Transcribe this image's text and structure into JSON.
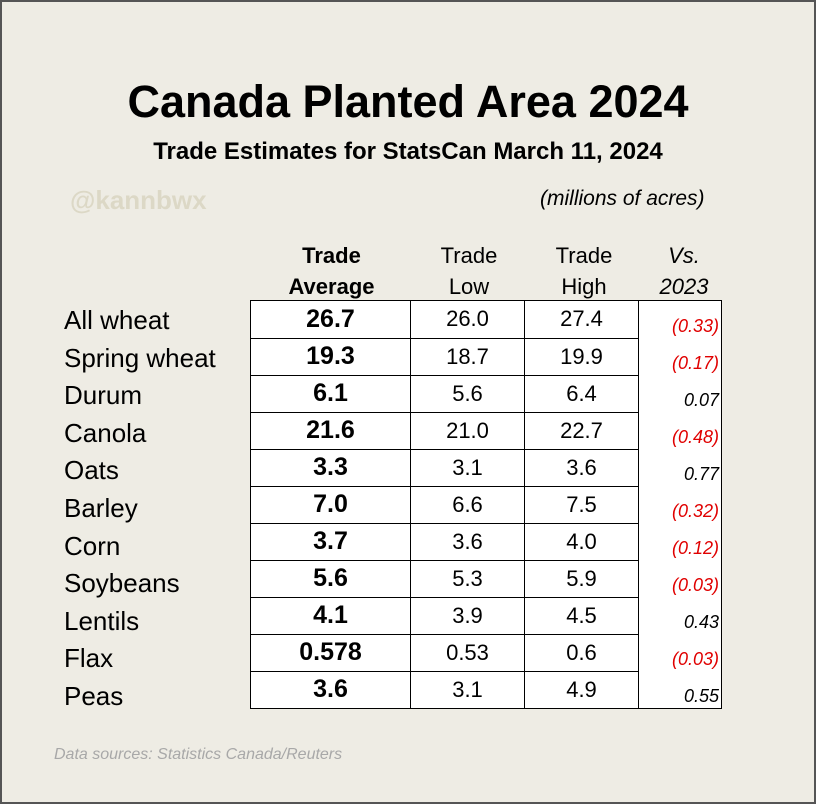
{
  "title": "Canada Planted Area 2024",
  "subtitle": "Trade Estimates for StatsCan March 11, 2024",
  "handle": "@kannbwx",
  "units": "(millions of acres)",
  "columns": [
    {
      "line1": "Trade",
      "line2": "Average"
    },
    {
      "line1": "Trade",
      "line2": "Low"
    },
    {
      "line1": "Trade",
      "line2": "High"
    },
    {
      "line1": "Vs.",
      "line2": "2023"
    }
  ],
  "rows": [
    {
      "crop": "All wheat",
      "avg": "26.7",
      "low": "26.0",
      "high": "27.4",
      "vs": "(0.33)",
      "neg": true
    },
    {
      "crop": "Spring wheat",
      "avg": "19.3",
      "low": "18.7",
      "high": "19.9",
      "vs": "(0.17)",
      "neg": true
    },
    {
      "crop": "Durum",
      "avg": "6.1",
      "low": "5.6",
      "high": "6.4",
      "vs": "0.07",
      "neg": false
    },
    {
      "crop": "Canola",
      "avg": "21.6",
      "low": "21.0",
      "high": "22.7",
      "vs": "(0.48)",
      "neg": true
    },
    {
      "crop": "Oats",
      "avg": "3.3",
      "low": "3.1",
      "high": "3.6",
      "vs": "0.77",
      "neg": false
    },
    {
      "crop": "Barley",
      "avg": "7.0",
      "low": "6.6",
      "high": "7.5",
      "vs": "(0.32)",
      "neg": true
    },
    {
      "crop": "Corn",
      "avg": "3.7",
      "low": "3.6",
      "high": "4.0",
      "vs": "(0.12)",
      "neg": true
    },
    {
      "crop": "Soybeans",
      "avg": "5.6",
      "low": "5.3",
      "high": "5.9",
      "vs": "(0.03)",
      "neg": true
    },
    {
      "crop": "Lentils",
      "avg": "4.1",
      "low": "3.9",
      "high": "4.5",
      "vs": "0.43",
      "neg": false
    },
    {
      "crop": "Flax",
      "avg": "0.578",
      "low": "0.53",
      "high": "0.6",
      "vs": "(0.03)",
      "neg": true
    },
    {
      "crop": "Peas",
      "avg": "3.6",
      "low": "3.1",
      "high": "4.9",
      "vs": "0.55",
      "neg": false
    }
  ],
  "source": "Data sources: Statistics Canada/Reuters",
  "colors": {
    "negative": "#e00000",
    "background": "#eeece4",
    "handle": "#dcd8c6"
  }
}
